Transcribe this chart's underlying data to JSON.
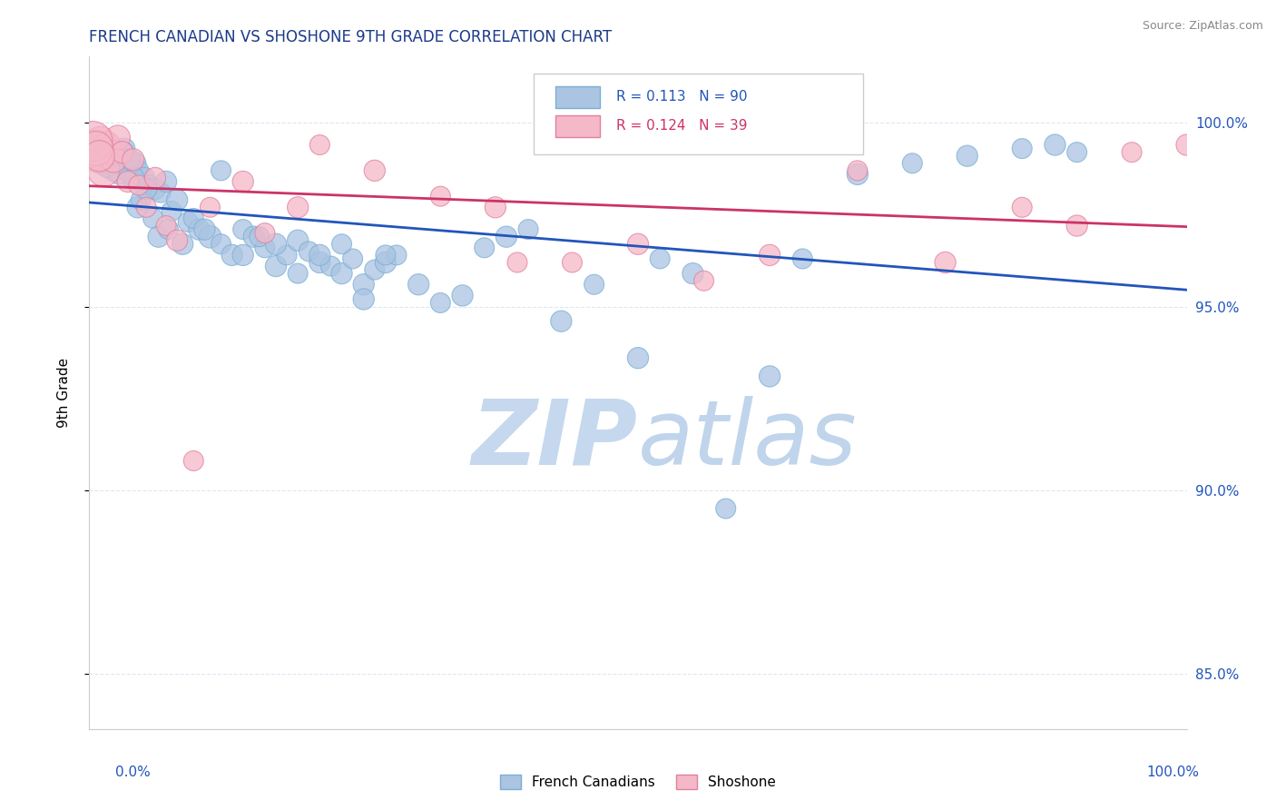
{
  "title": "FRENCH CANADIAN VS SHOSHONE 9TH GRADE CORRELATION CHART",
  "source_text": "Source: ZipAtlas.com",
  "ylabel": "9th Grade",
  "y_ticks": [
    85.0,
    90.0,
    95.0,
    100.0
  ],
  "y_tick_labels": [
    "85.0%",
    "90.0%",
    "95.0%",
    "100.0%"
  ],
  "x_min": 0.0,
  "x_max": 100.0,
  "y_min": 83.5,
  "y_max": 101.8,
  "legend_blue_label": "French Canadians",
  "legend_pink_label": "Shoshone",
  "R_blue": "0.113",
  "N_blue": 90,
  "R_pink": "0.124",
  "N_pink": 39,
  "blue_color": "#aac4e2",
  "blue_edge": "#7aafd4",
  "blue_line": "#2255bb",
  "pink_color": "#f5b8c8",
  "pink_edge": "#e080a0",
  "pink_line": "#cc3366",
  "title_color": "#1a3a8a",
  "tick_color": "#2255bb",
  "grid_color": "#dce8f5",
  "source_color": "#888888",
  "watermark_zip_color": "#c5d8ee",
  "watermark_atlas_color": "#c0d5eb",
  "blue_x": [
    1.0,
    1.2,
    1.5,
    1.8,
    2.0,
    2.2,
    2.5,
    2.8,
    3.0,
    3.2,
    3.5,
    3.8,
    4.0,
    4.2,
    4.5,
    5.0,
    5.5,
    6.0,
    6.5,
    7.0,
    7.5,
    8.0,
    9.0,
    10.0,
    11.0,
    12.0,
    13.0,
    14.0,
    15.0,
    16.0,
    17.0,
    18.0,
    19.0,
    20.0,
    21.0,
    22.0,
    23.0,
    24.0,
    25.0,
    26.0,
    27.0,
    28.0,
    30.0,
    32.0,
    34.0,
    36.0,
    38.0,
    40.0,
    43.0,
    46.0,
    50.0,
    52.0,
    55.0,
    58.0,
    62.0,
    65.0,
    70.0,
    75.0,
    80.0,
    85.0,
    88.0,
    90.0,
    1.0,
    1.3,
    1.6,
    2.0,
    2.3,
    2.7,
    3.1,
    3.4,
    3.7,
    4.1,
    4.4,
    4.7,
    5.2,
    5.8,
    6.3,
    7.2,
    8.5,
    9.5,
    10.5,
    12.0,
    14.0,
    15.5,
    17.0,
    19.0,
    21.0,
    23.0,
    25.0,
    27.0
  ],
  "blue_y": [
    99.1,
    99.0,
    98.9,
    98.8,
    99.2,
    98.7,
    99.0,
    99.1,
    98.8,
    99.3,
    99.0,
    98.6,
    98.5,
    98.9,
    98.7,
    98.5,
    98.3,
    98.2,
    98.1,
    98.4,
    97.6,
    97.9,
    97.3,
    97.1,
    96.9,
    96.7,
    96.4,
    97.1,
    96.9,
    96.6,
    96.1,
    96.4,
    96.8,
    96.5,
    96.2,
    96.1,
    95.9,
    96.3,
    95.6,
    96.0,
    96.2,
    96.4,
    95.6,
    95.1,
    95.3,
    96.6,
    96.9,
    97.1,
    94.6,
    95.6,
    93.6,
    96.3,
    95.9,
    89.5,
    93.1,
    96.3,
    98.6,
    98.9,
    99.1,
    99.3,
    99.4,
    99.2,
    98.9,
    99.1,
    98.8,
    99.3,
    99.0,
    98.6,
    99.2,
    98.7,
    99.0,
    98.5,
    97.7,
    97.9,
    98.2,
    97.4,
    96.9,
    97.1,
    96.7,
    97.4,
    97.1,
    98.7,
    96.4,
    96.9,
    96.7,
    95.9,
    96.4,
    96.7,
    95.2,
    96.4
  ],
  "blue_sizes": [
    35,
    25,
    30,
    28,
    32,
    28,
    30,
    28,
    32,
    28,
    30,
    28,
    32,
    28,
    25,
    28,
    25,
    28,
    25,
    28,
    25,
    28,
    25,
    28,
    32,
    25,
    28,
    25,
    28,
    25,
    28,
    25,
    28,
    25,
    28,
    25,
    28,
    25,
    28,
    25,
    28,
    25,
    28,
    25,
    28,
    25,
    28,
    25,
    28,
    25,
    28,
    25,
    28,
    25,
    28,
    25,
    28,
    25,
    28,
    25,
    28,
    25,
    28,
    25,
    28,
    25,
    28,
    25,
    28,
    25,
    28,
    25,
    28,
    25,
    28,
    25,
    28,
    25,
    28,
    25,
    28,
    25,
    28,
    25,
    28,
    25,
    28,
    25,
    28,
    25
  ],
  "pink_x": [
    0.5,
    0.8,
    1.0,
    1.3,
    1.6,
    1.9,
    2.2,
    2.6,
    3.0,
    3.5,
    4.0,
    4.5,
    5.2,
    6.0,
    7.0,
    8.0,
    9.5,
    11.0,
    14.0,
    16.0,
    19.0,
    21.0,
    26.0,
    32.0,
    37.0,
    44.0,
    50.0,
    56.0,
    62.0,
    70.0,
    78.0,
    85.0,
    90.0,
    95.0,
    100.0,
    0.3,
    0.6,
    0.9,
    39.0
  ],
  "pink_y": [
    99.3,
    99.1,
    99.5,
    98.7,
    99.4,
    99.2,
    99.0,
    99.6,
    99.2,
    98.4,
    99.0,
    98.3,
    97.7,
    98.5,
    97.2,
    96.8,
    90.8,
    97.7,
    98.4,
    97.0,
    97.7,
    99.4,
    98.7,
    98.0,
    97.7,
    96.2,
    96.7,
    95.7,
    96.4,
    98.7,
    96.2,
    97.7,
    97.2,
    99.2,
    99.4,
    99.5,
    99.3,
    99.1,
    96.2
  ],
  "pink_sizes": [
    90,
    70,
    55,
    65,
    45,
    40,
    42,
    38,
    30,
    28,
    30,
    25,
    25,
    28,
    25,
    28,
    25,
    25,
    28,
    25,
    28,
    25,
    28,
    25,
    28,
    25,
    28,
    25,
    28,
    25,
    28,
    25,
    28,
    25,
    28,
    100,
    75,
    60,
    25
  ]
}
